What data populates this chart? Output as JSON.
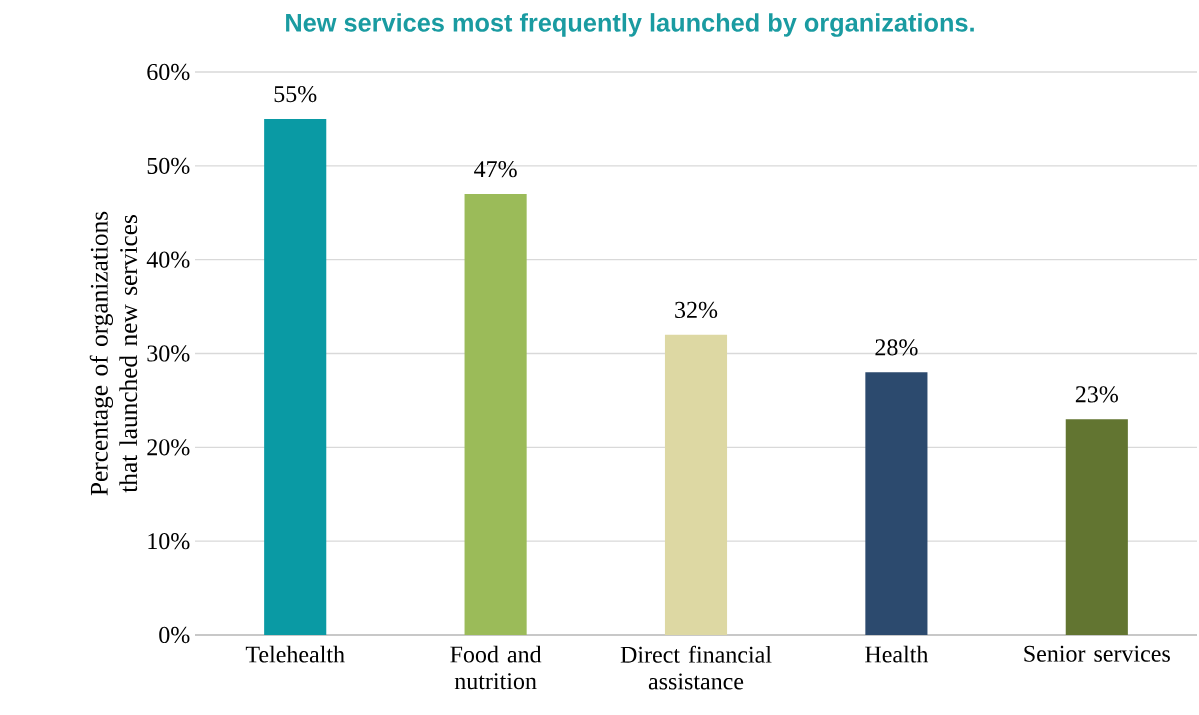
{
  "chart_data": {
    "type": "bar",
    "title": "New services most frequently launched by organizations.",
    "ylabel": "Percentage of organizations that launched new services",
    "categories": [
      "Telehealth",
      "Food and nutrition",
      "Direct financial assistance",
      "Health",
      "Senior services"
    ],
    "values": [
      55,
      47,
      32,
      28,
      23
    ],
    "value_labels": [
      "55%",
      "47%",
      "32%",
      "28%",
      "23%"
    ],
    "colors": [
      "#0a9aa4",
      "#9bbb59",
      "#ddd8a3",
      "#2c4a6e",
      "#627531"
    ],
    "ylim": [
      0,
      60
    ],
    "yticks": [
      {
        "value": 0,
        "label": "0%"
      },
      {
        "value": 10,
        "label": "10%"
      },
      {
        "value": 20,
        "label": "20%"
      },
      {
        "value": 30,
        "label": "30%"
      },
      {
        "value": 40,
        "label": "40%"
      },
      {
        "value": 50,
        "label": "50%"
      },
      {
        "value": 60,
        "label": "60%"
      }
    ],
    "grid": "y"
  }
}
